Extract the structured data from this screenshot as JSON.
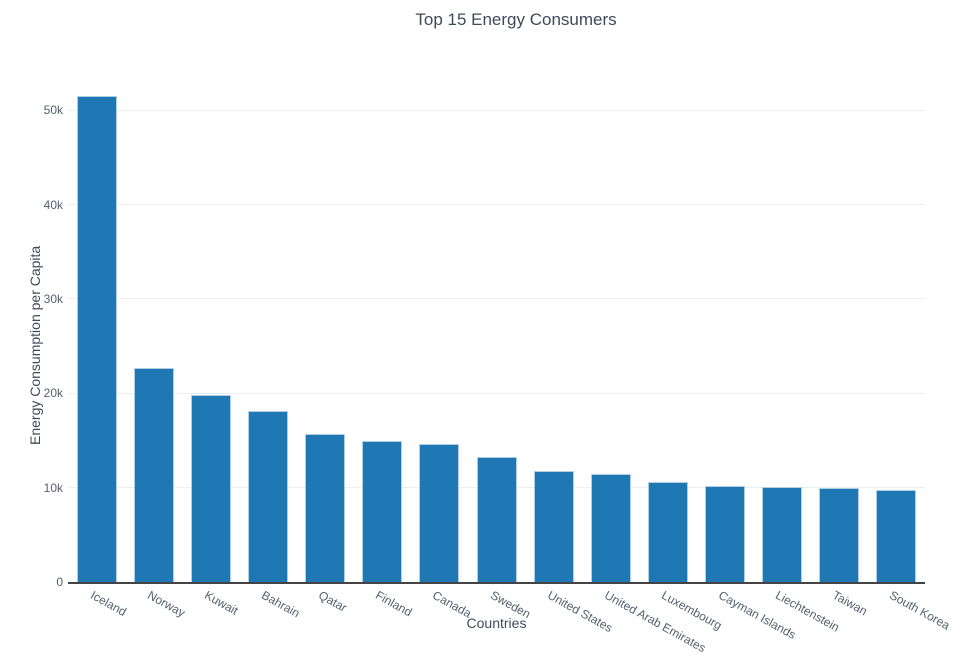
{
  "colors": {
    "bar": "#1f77b4",
    "grid": "#eceff2",
    "axis_line": "#444444",
    "title_text": "#404a59",
    "tick_text": "#53606e"
  },
  "chart_data": {
    "type": "bar",
    "title": "Top 15 Energy Consumers",
    "xlabel": "Countries",
    "ylabel": "Energy Consumption per Capita",
    "categories": [
      "Iceland",
      "Norway",
      "Kuwait",
      "Bahrain",
      "Qatar",
      "Finland",
      "Canada",
      "Sweden",
      "United States",
      "United Arab Emirates",
      "Luxembourg",
      "Cayman Islands",
      "Liechtenstein",
      "Taiwan",
      "South Korea"
    ],
    "values": [
      51500,
      22700,
      19800,
      18100,
      15700,
      14900,
      14600,
      13200,
      11800,
      11500,
      10600,
      10200,
      10100,
      10000,
      9700
    ],
    "ylim": [
      0,
      53200
    ],
    "yticks": [
      0,
      10000,
      20000,
      30000,
      40000,
      50000
    ],
    "ytick_labels": [
      "0",
      "10k",
      "20k",
      "30k",
      "40k",
      "50k"
    ],
    "xtick_angle_deg": 29,
    "grid": true,
    "legend": "none",
    "bar_color": "#1f77b4"
  }
}
